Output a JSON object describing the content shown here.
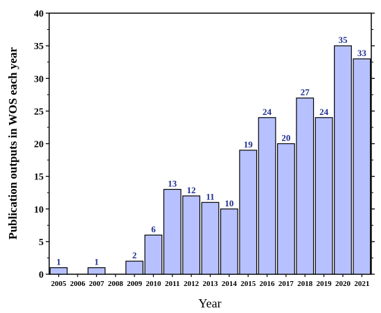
{
  "chart_data": {
    "type": "bar",
    "title": "",
    "xlabel": "Year",
    "ylabel": "Publication outputs in WOS each year",
    "categories": [
      "2005",
      "2006",
      "2007",
      "2008",
      "2009",
      "2010",
      "2011",
      "2012",
      "2013",
      "2014",
      "2015",
      "2016",
      "2017",
      "2018",
      "2019",
      "2020",
      "2021"
    ],
    "values": [
      1,
      0,
      1,
      0,
      2,
      6,
      13,
      12,
      11,
      10,
      19,
      24,
      20,
      27,
      24,
      35,
      33
    ],
    "data_labels": [
      "1",
      "",
      "1",
      "",
      "2",
      "6",
      "13",
      "12",
      "11",
      "10",
      "19",
      "24",
      "20",
      "27",
      "24",
      "35",
      "33"
    ],
    "ylim": [
      0,
      40
    ],
    "yticks": [
      0,
      5,
      10,
      15,
      20,
      25,
      30,
      35,
      40
    ],
    "grid": false,
    "legend": "none",
    "colors": {
      "bar_fill": "#b7c1ff",
      "bar_stroke": "#000000",
      "data_label": "#1f2f8f",
      "axis": "#000000"
    }
  }
}
